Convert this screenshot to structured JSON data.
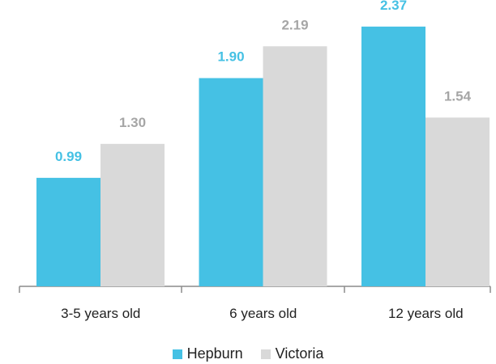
{
  "chart_data": {
    "type": "bar",
    "categories": [
      "3-5 years old",
      "6 years old",
      "12 years old"
    ],
    "series": [
      {
        "name": "Hepburn",
        "values": [
          0.99,
          1.9,
          2.37
        ],
        "labels": [
          "0.99",
          "1.90",
          "2.37"
        ],
        "color": "#45C1E4",
        "label_color": "#45C1E4"
      },
      {
        "name": "Victoria",
        "values": [
          1.3,
          2.19,
          1.54
        ],
        "labels": [
          "1.30",
          "2.19",
          "1.54"
        ],
        "color": "#D9D9D9",
        "label_color": "#A6A6A6"
      }
    ],
    "ylim": [
      0,
      2.5
    ],
    "grid": false,
    "legend": "bottom",
    "title": "",
    "xlabel": "",
    "ylabel": ""
  }
}
